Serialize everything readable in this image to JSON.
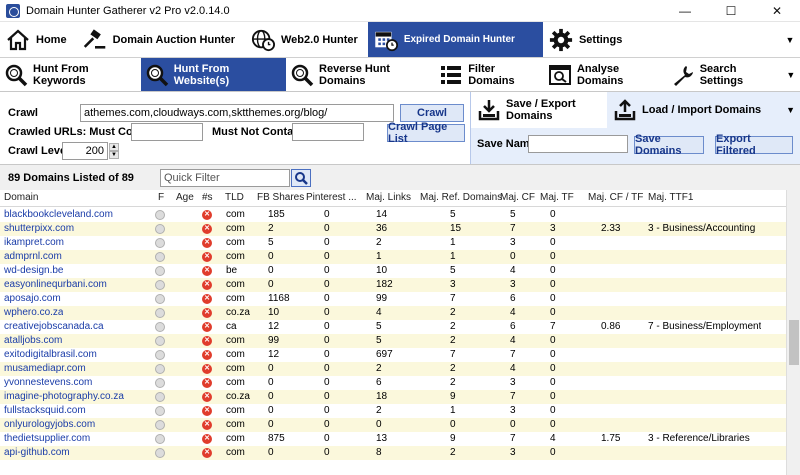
{
  "window": {
    "title": "Domain Hunter Gatherer v2 Pro v2.0.14.0"
  },
  "main_tabs": [
    {
      "label": "Home",
      "icon": "home-icon"
    },
    {
      "label": "Domain Auction Hunter",
      "icon": "gavel-icon"
    },
    {
      "label": "Web2.0 Hunter",
      "icon": "globe-clock-icon"
    },
    {
      "label": "Expired Domain Hunter",
      "icon": "calendar-clock-icon",
      "active": true
    },
    {
      "label": "Settings",
      "icon": "gear-icon"
    }
  ],
  "sub_tabs": [
    {
      "label": "Hunt From Keywords",
      "icon": "search-icon"
    },
    {
      "label": "Hunt From Website(s)",
      "icon": "search-icon",
      "active": true
    },
    {
      "label": "Reverse Hunt Domains",
      "icon": "search-icon"
    },
    {
      "label": "Filter Domains",
      "icon": "list-icon"
    },
    {
      "label": "Analyse Domains",
      "icon": "analyse-icon"
    },
    {
      "label": "Search Settings",
      "icon": "wrench-icon"
    }
  ],
  "crawl": {
    "crawl_label": "Crawl",
    "crawl_value": "athemes.com,cloudways.com,sktthemes.org/blog/",
    "crawl_button": "Crawl",
    "must_contain_label": "Crawled URLs: Must Contain",
    "must_contain_value": "",
    "must_not_contain_label": "Must Not Contain",
    "must_not_contain_value": "",
    "crawl_page_list_button": "Crawl Page List",
    "crawl_levels_label": "Crawl Levels",
    "crawl_levels_value": "200"
  },
  "export": {
    "tab_export": "Save / Export Domains",
    "tab_load": "Load / Import Domains",
    "save_name_label": "Save Name",
    "save_name_value": "",
    "save_domains_button": "Save Domains",
    "export_filtered_button": "Export Filtered"
  },
  "list": {
    "count_text": "89 Domains Listed of 89",
    "quick_filter_placeholder": "Quick Filter"
  },
  "table": {
    "columns": [
      "Domain",
      "F",
      "Age",
      "#s",
      "TLD",
      "FB Shares",
      "Pinterest ...",
      "Maj. Links",
      "Maj. Ref. Domains",
      "Maj. CF",
      "Maj. TF",
      "Maj. CF / TF",
      "Maj. TTF1"
    ],
    "rows": [
      [
        "blackbookcleveland.com",
        "",
        "",
        "",
        "com",
        "185",
        "0",
        "14",
        "5",
        "5",
        "0",
        "",
        ""
      ],
      [
        "shutterpixx.com",
        "",
        "",
        "",
        "com",
        "2",
        "0",
        "36",
        "15",
        "7",
        "3",
        "2.33",
        "3 - Business/Accounting"
      ],
      [
        "ikampret.com",
        "",
        "",
        "",
        "com",
        "5",
        "0",
        "2",
        "1",
        "3",
        "0",
        "",
        ""
      ],
      [
        "admprnl.com",
        "",
        "",
        "",
        "com",
        "0",
        "0",
        "1",
        "1",
        "0",
        "0",
        "",
        ""
      ],
      [
        "wd-design.be",
        "",
        "",
        "",
        "be",
        "0",
        "0",
        "10",
        "5",
        "4",
        "0",
        "",
        ""
      ],
      [
        "easyonlinequrbani.com",
        "",
        "",
        "",
        "com",
        "0",
        "0",
        "182",
        "3",
        "3",
        "0",
        "",
        ""
      ],
      [
        "aposajo.com",
        "",
        "",
        "",
        "com",
        "1168",
        "0",
        "99",
        "7",
        "6",
        "0",
        "",
        ""
      ],
      [
        "wphero.co.za",
        "",
        "",
        "",
        "co.za",
        "10",
        "0",
        "4",
        "2",
        "4",
        "0",
        "",
        ""
      ],
      [
        "creativejobscanada.ca",
        "",
        "",
        "",
        "ca",
        "12",
        "0",
        "5",
        "2",
        "6",
        "7",
        "0.86",
        "7 - Business/Employment"
      ],
      [
        "atalljobs.com",
        "",
        "",
        "",
        "com",
        "99",
        "0",
        "5",
        "2",
        "4",
        "0",
        "",
        ""
      ],
      [
        "exitodigitalbrasil.com",
        "",
        "",
        "",
        "com",
        "12",
        "0",
        "697",
        "7",
        "7",
        "0",
        "",
        ""
      ],
      [
        "musamediapr.com",
        "",
        "",
        "",
        "com",
        "0",
        "0",
        "2",
        "2",
        "4",
        "0",
        "",
        ""
      ],
      [
        "yvonnestevens.com",
        "",
        "",
        "",
        "com",
        "0",
        "0",
        "6",
        "2",
        "3",
        "0",
        "",
        ""
      ],
      [
        "imagine-photography.co.za",
        "",
        "",
        "",
        "co.za",
        "0",
        "0",
        "18",
        "9",
        "7",
        "0",
        "",
        ""
      ],
      [
        "fullstacksquid.com",
        "",
        "",
        "",
        "com",
        "0",
        "0",
        "2",
        "1",
        "3",
        "0",
        "",
        ""
      ],
      [
        "onlyurologyjobs.com",
        "",
        "",
        "",
        "com",
        "0",
        "0",
        "0",
        "0",
        "0",
        "0",
        "",
        ""
      ],
      [
        "thedietsupplier.com",
        "",
        "",
        "",
        "com",
        "875",
        "0",
        "13",
        "9",
        "7",
        "4",
        "1.75",
        "3 - Reference/Libraries"
      ],
      [
        "api-github.com",
        "",
        "",
        "",
        "com",
        "0",
        "0",
        "8",
        "2",
        "3",
        "0",
        "",
        ""
      ]
    ]
  }
}
